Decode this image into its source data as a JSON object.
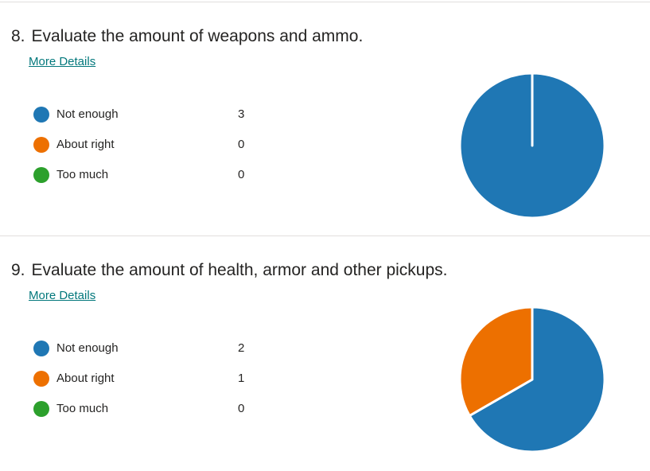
{
  "questions": [
    {
      "number": "8.",
      "title": "Evaluate the amount of weapons and ammo.",
      "more_details": "More Details",
      "options": [
        {
          "label": "Not enough",
          "count": "3",
          "color": "#1f77b4"
        },
        {
          "label": "About right",
          "count": "0",
          "color": "#ed7000"
        },
        {
          "label": "Too much",
          "count": "0",
          "color": "#2ca02c"
        }
      ]
    },
    {
      "number": "9.",
      "title": "Evaluate the amount of health, armor and other pickups.",
      "more_details": "More Details",
      "options": [
        {
          "label": "Not enough",
          "count": "2",
          "color": "#1f77b4"
        },
        {
          "label": "About right",
          "count": "1",
          "color": "#ed7000"
        },
        {
          "label": "Too much",
          "count": "0",
          "color": "#2ca02c"
        }
      ]
    }
  ],
  "chart_data": [
    {
      "type": "pie",
      "categories": [
        "Not enough",
        "About right",
        "Too much"
      ],
      "values": [
        3,
        0,
        0
      ],
      "colors": [
        "#1f77b4",
        "#ed7000",
        "#2ca02c"
      ]
    },
    {
      "type": "pie",
      "categories": [
        "Not enough",
        "About right",
        "Too much"
      ],
      "values": [
        2,
        1,
        0
      ],
      "colors": [
        "#1f77b4",
        "#ed7000",
        "#2ca02c"
      ]
    }
  ]
}
